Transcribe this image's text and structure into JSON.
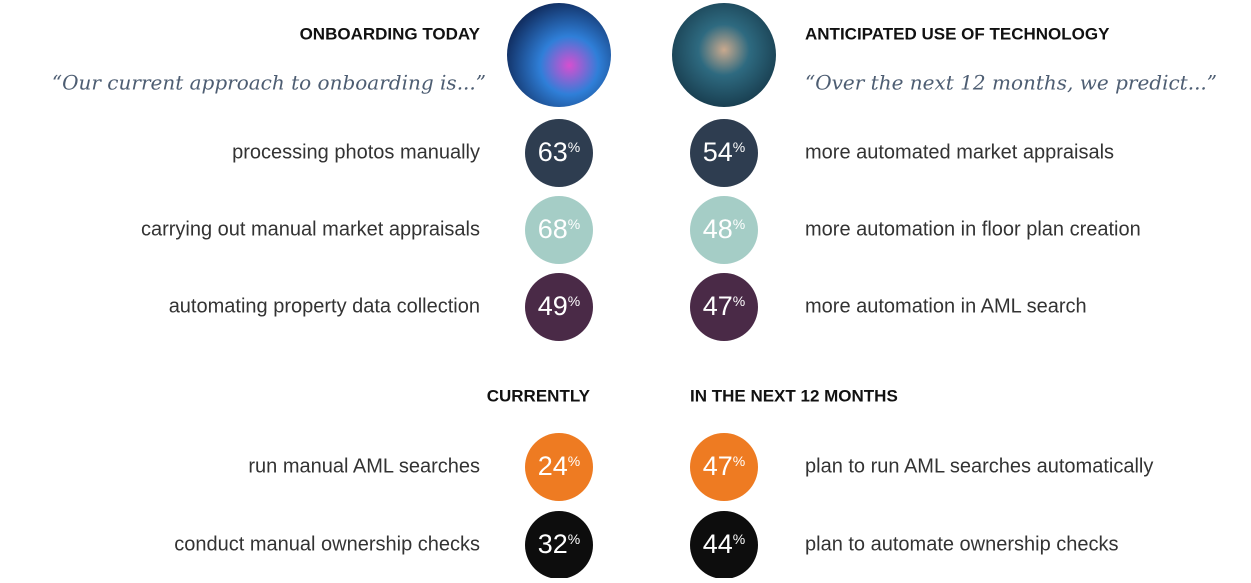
{
  "unit": "%",
  "left": {
    "title": "ONBOARDING TODAY",
    "quote": "“Our current approach to onboarding is...”",
    "items": [
      {
        "label": "processing photos manually",
        "value": 63,
        "color": "#2e3d50"
      },
      {
        "label": "carrying out manual market appraisals",
        "value": 68,
        "color": "#a5cdc6"
      },
      {
        "label": "automating property data collection",
        "value": 49,
        "color": "#4a2a47"
      }
    ]
  },
  "right": {
    "title": "ANTICIPATED USE OF TECHNOLOGY",
    "quote": "“Over the next 12 months, we predict...”",
    "items": [
      {
        "label": "more automated market appraisals",
        "value": 54,
        "color": "#2e3d50"
      },
      {
        "label": "more automation in floor plan creation",
        "value": 48,
        "color": "#a5cdc6"
      },
      {
        "label": "more automation in AML search",
        "value": 47,
        "color": "#4a2a47"
      }
    ]
  },
  "bottom_left": {
    "title": "CURRENTLY",
    "items": [
      {
        "label": "run manual AML searches",
        "value": 24,
        "color": "#ee7b22"
      },
      {
        "label": "conduct manual ownership checks",
        "value": 32,
        "color": "#0d0d0d"
      }
    ]
  },
  "bottom_right": {
    "title": "IN THE NEXT 12 MONTHS",
    "items": [
      {
        "label": "plan to run AML searches automatically",
        "value": 47,
        "color": "#ee7b22"
      },
      {
        "label": "plan to automate ownership checks",
        "value": 44,
        "color": "#0d0d0d"
      }
    ]
  }
}
